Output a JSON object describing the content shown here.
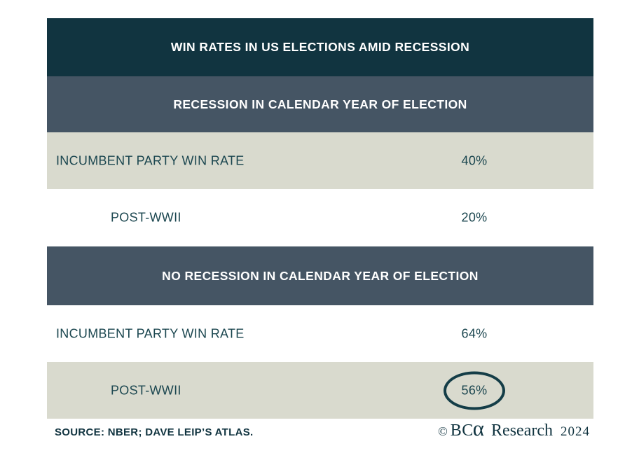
{
  "title": "WIN RATES IN US ELECTIONS AMID RECESSION",
  "sections": [
    {
      "header": "RECESSION IN CALENDAR YEAR OF ELECTION",
      "rows": [
        {
          "label": "INCUMBENT PARTY WIN RATE",
          "value": "40%"
        },
        {
          "label": "POST-WWII",
          "value": "20%"
        }
      ]
    },
    {
      "header": "NO RECESSION IN CALENDAR YEAR OF ELECTION",
      "rows": [
        {
          "label": "INCUMBENT PARTY WIN RATE",
          "value": "64%"
        },
        {
          "label": "POST-WWII",
          "value": "56%"
        }
      ]
    }
  ],
  "footer": {
    "source": "SOURCE: NBER; DAVE LEIP’S ATLAS.",
    "copyright_symbol": "©",
    "brand_bc": "BC",
    "brand_alpha": "α",
    "brand_suffix": "Research",
    "year": "2024"
  },
  "colors": {
    "header_bg": "#113440",
    "subheader_bg": "#455564",
    "shaded_row_bg": "#d9dace",
    "text": "#1c4750",
    "header_text": "#ffffff",
    "circle_stroke": "#143d47"
  },
  "chart_data": {
    "type": "table",
    "title": "WIN RATES IN US ELECTIONS AMID RECESSION",
    "sections": [
      {
        "header": "RECESSION IN CALENDAR YEAR OF ELECTION",
        "rows": [
          {
            "label": "INCUMBENT PARTY WIN RATE",
            "value_pct": 40
          },
          {
            "label": "POST-WWII",
            "value_pct": 20
          }
        ]
      },
      {
        "header": "NO RECESSION IN CALENDAR YEAR OF ELECTION",
        "rows": [
          {
            "label": "INCUMBENT PARTY WIN RATE",
            "value_pct": 64
          },
          {
            "label": "POST-WWII",
            "value_pct": 56,
            "annotation": "circled"
          }
        ]
      }
    ],
    "source": "SOURCE: NBER; DAVE LEIP’S ATLAS.",
    "branding": "© BCα Research 2024"
  }
}
